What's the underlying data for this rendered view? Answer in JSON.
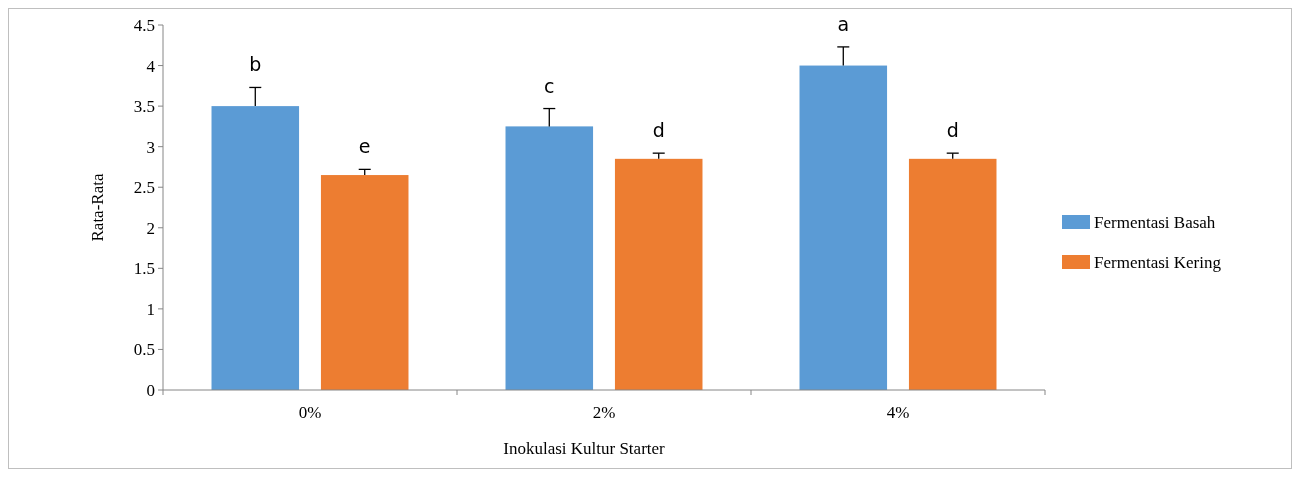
{
  "chart_data": {
    "type": "bar",
    "xlabel": "Inokulasi Kultur Starter",
    "ylabel": "Rata-Rata",
    "categories": [
      "0%",
      "2%",
      "4%"
    ],
    "series": [
      {
        "name": "Fermentasi Basah",
        "color": "#5b9bd5",
        "values": [
          3.5,
          3.25,
          4.0
        ],
        "value_labels": [
          "b",
          "c",
          "a"
        ],
        "errors": [
          [
            3.5,
            3.73
          ],
          [
            3.25,
            3.47
          ],
          [
            4.0,
            4.23
          ]
        ]
      },
      {
        "name": "Fermentasi Kering",
        "color": "#ed7d31",
        "values": [
          2.65,
          2.85,
          2.85
        ],
        "value_labels": [
          "e",
          "d",
          "d"
        ],
        "errors": [
          [
            2.65,
            2.72
          ],
          [
            2.85,
            2.92
          ],
          [
            2.85,
            2.92
          ]
        ]
      }
    ],
    "ylim": [
      0,
      4.5
    ],
    "yticks": [
      0,
      0.5,
      1,
      1.5,
      2,
      2.5,
      3,
      3.5,
      4,
      4.5
    ],
    "legend": "right",
    "grid": false
  }
}
